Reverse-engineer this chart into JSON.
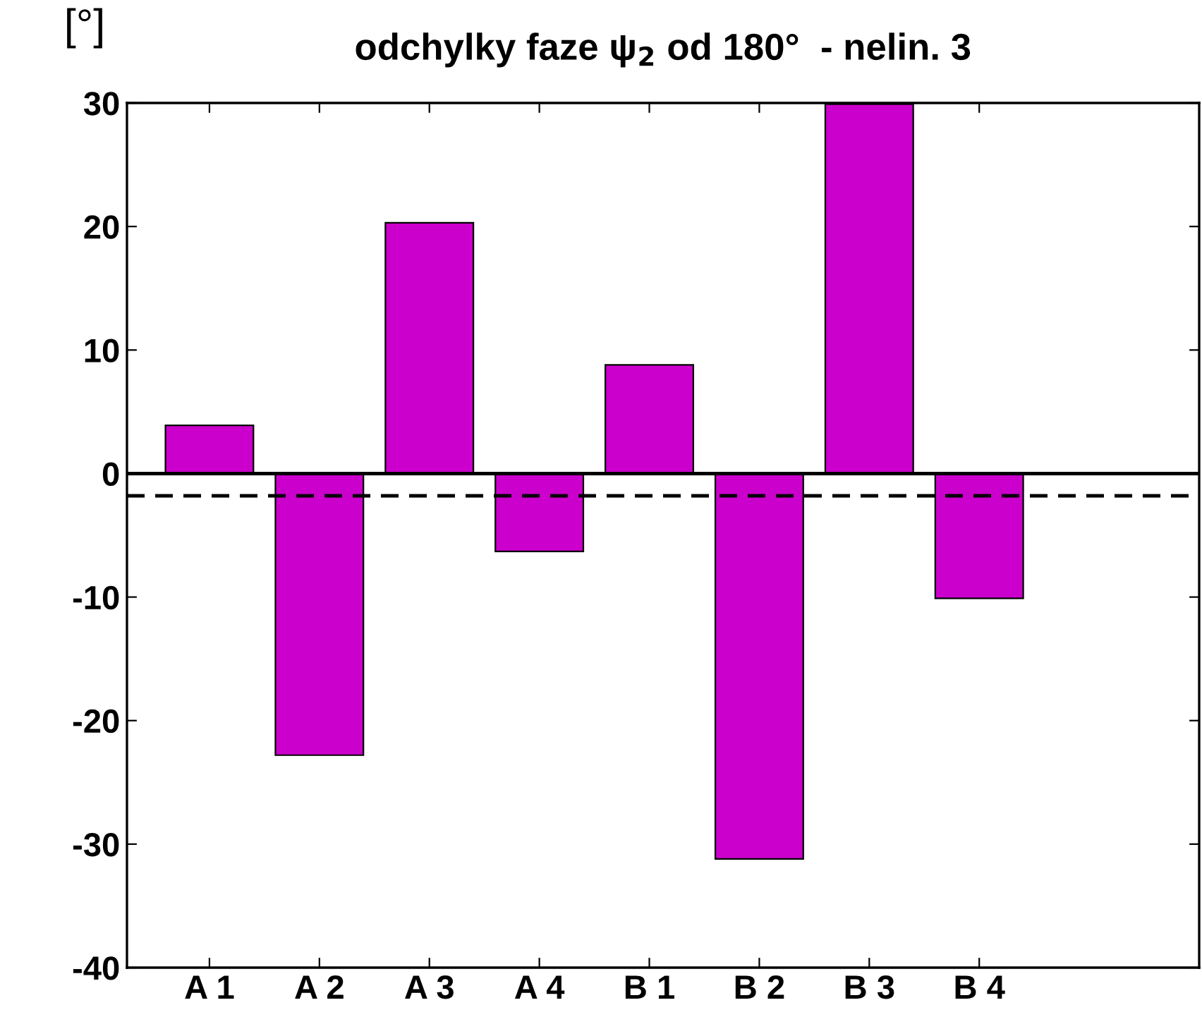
{
  "chart_data": {
    "type": "bar",
    "title": "odchylky faze ψ$_{2}$ od 180°  - nelin. 3",
    "ylabel": "[°]",
    "categories": [
      "A 1",
      "A 2",
      "A 3",
      "A 4",
      "B 1",
      "B 2",
      "B 3",
      "B 4"
    ],
    "values": [
      3.9,
      -22.8,
      20.3,
      -6.3,
      8.8,
      -31.2,
      29.9,
      -10.1
    ],
    "color": "#cc00cc",
    "ylim": [
      -40,
      30
    ],
    "yticks": [
      -40,
      -30,
      -20,
      -10,
      0,
      10,
      20,
      30
    ],
    "ref_lines": [
      {
        "axis": "y",
        "value": 0,
        "line_style": "solid",
        "color": "#000000"
      },
      {
        "axis": "y",
        "value": -1.8,
        "line_style": "dashed",
        "color": "#000000"
      }
    ],
    "grid": false,
    "legend": false
  }
}
